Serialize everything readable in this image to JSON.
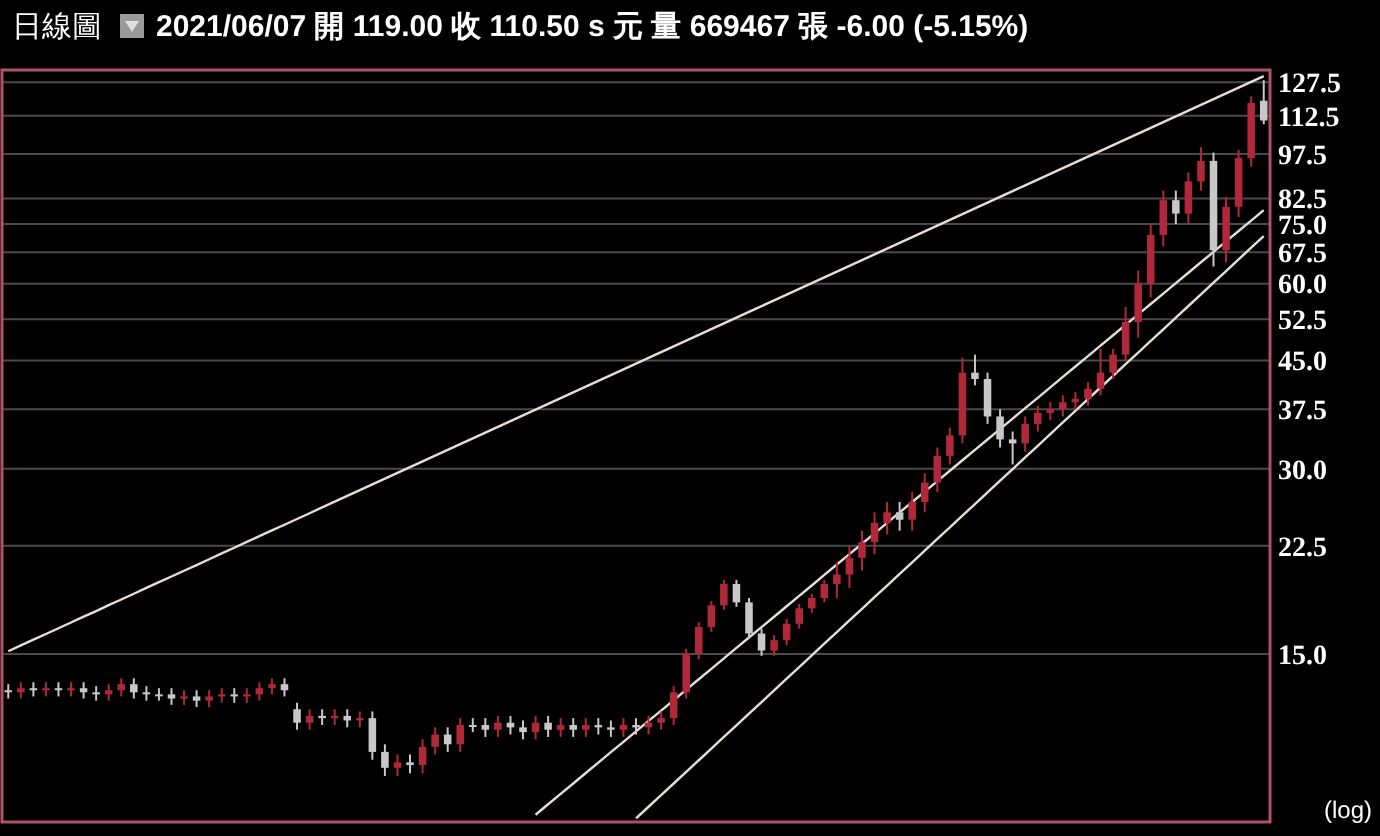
{
  "chart_data": {
    "type": "candlestick",
    "title": "日線圖",
    "subtitle": "2021/06/07 開 119.00 收 110.50 s 元 量 669467 張 -6.00 (-5.15%)",
    "annotations": [
      "(log)"
    ],
    "categories": [
      null,
      null,
      null,
      null,
      null,
      null,
      null,
      null,
      null,
      null,
      null,
      null,
      null,
      null,
      null,
      null,
      null,
      null,
      null,
      null,
      null,
      null,
      null,
      null,
      null,
      null,
      null,
      null,
      null,
      null,
      null,
      null,
      null,
      null,
      null,
      null,
      null,
      null,
      null,
      null,
      null,
      null,
      null,
      null,
      null,
      null,
      null,
      null,
      null,
      null,
      null,
      null,
      null,
      null,
      null,
      null,
      null,
      null,
      null,
      null,
      null,
      null,
      null,
      null,
      null,
      null,
      null,
      null,
      null,
      null,
      null,
      null,
      null,
      null,
      null,
      null,
      null,
      null,
      null,
      null,
      null,
      null,
      null,
      null,
      null,
      null,
      null,
      null,
      null,
      null,
      null,
      null,
      null,
      null,
      null,
      null,
      null,
      null,
      null,
      null,
      null
    ],
    "ohlc": [
      [
        13.1,
        13.4,
        12.7,
        13.0
      ],
      [
        13.0,
        13.5,
        12.7,
        13.2
      ],
      [
        13.2,
        13.5,
        12.8,
        13.1
      ],
      [
        13.1,
        13.5,
        12.8,
        13.2
      ],
      [
        13.2,
        13.5,
        12.8,
        13.1
      ],
      [
        13.1,
        13.5,
        12.8,
        13.2
      ],
      [
        13.2,
        13.5,
        12.7,
        13.0
      ],
      [
        13.0,
        13.3,
        12.6,
        12.9
      ],
      [
        12.9,
        13.4,
        12.6,
        13.1
      ],
      [
        13.1,
        13.7,
        12.8,
        13.4
      ],
      [
        13.4,
        13.7,
        12.7,
        13.0
      ],
      [
        13.0,
        13.3,
        12.6,
        12.9
      ],
      [
        12.9,
        13.2,
        12.6,
        12.9
      ],
      [
        12.9,
        13.2,
        12.4,
        12.7
      ],
      [
        12.7,
        13.1,
        12.4,
        12.8
      ],
      [
        12.8,
        13.1,
        12.3,
        12.6
      ],
      [
        12.6,
        13.1,
        12.3,
        12.8
      ],
      [
        12.8,
        13.2,
        12.5,
        12.9
      ],
      [
        12.9,
        13.2,
        12.5,
        12.8
      ],
      [
        12.8,
        13.2,
        12.5,
        12.9
      ],
      [
        12.9,
        13.5,
        12.6,
        13.2
      ],
      [
        13.2,
        13.7,
        12.9,
        13.4
      ],
      [
        13.4,
        13.7,
        12.8,
        13.1
      ],
      [
        12.2,
        12.5,
        11.3,
        11.6
      ],
      [
        11.6,
        12.2,
        11.3,
        11.9
      ],
      [
        11.9,
        12.2,
        11.5,
        11.8
      ],
      [
        11.8,
        12.2,
        11.5,
        11.9
      ],
      [
        11.9,
        12.2,
        11.4,
        11.7
      ],
      [
        11.7,
        12.1,
        11.4,
        11.8
      ],
      [
        11.8,
        12.1,
        10.1,
        10.4
      ],
      [
        10.4,
        10.7,
        9.5,
        9.8
      ],
      [
        9.8,
        10.3,
        9.5,
        10.0
      ],
      [
        10.0,
        10.3,
        9.6,
        9.9
      ],
      [
        9.9,
        10.9,
        9.6,
        10.6
      ],
      [
        10.6,
        11.4,
        10.3,
        11.1
      ],
      [
        11.1,
        11.4,
        10.4,
        10.7
      ],
      [
        10.7,
        11.8,
        10.4,
        11.5
      ],
      [
        11.5,
        11.8,
        11.2,
        11.5
      ],
      [
        11.5,
        11.8,
        11.0,
        11.3
      ],
      [
        11.3,
        11.9,
        11.0,
        11.6
      ],
      [
        11.6,
        11.9,
        11.1,
        11.4
      ],
      [
        11.4,
        11.7,
        10.9,
        11.2
      ],
      [
        11.2,
        11.9,
        10.9,
        11.6
      ],
      [
        11.6,
        11.9,
        11.0,
        11.3
      ],
      [
        11.3,
        11.8,
        11.0,
        11.5
      ],
      [
        11.5,
        11.8,
        11.0,
        11.3
      ],
      [
        11.3,
        11.8,
        11.0,
        11.5
      ],
      [
        11.5,
        11.8,
        11.1,
        11.4
      ],
      [
        11.4,
        11.7,
        11.0,
        11.3
      ],
      [
        11.3,
        11.8,
        11.0,
        11.5
      ],
      [
        11.5,
        11.8,
        11.1,
        11.4
      ],
      [
        11.4,
        11.9,
        11.1,
        11.6
      ],
      [
        11.6,
        12.1,
        11.3,
        11.8
      ],
      [
        11.8,
        13.3,
        11.5,
        13.0
      ],
      [
        13.0,
        15.3,
        12.7,
        15.0
      ],
      [
        15.0,
        16.9,
        14.7,
        16.6
      ],
      [
        16.6,
        18.3,
        16.3,
        18.0
      ],
      [
        18.0,
        19.8,
        17.7,
        19.5
      ],
      [
        19.5,
        19.8,
        17.9,
        18.2
      ],
      [
        18.2,
        18.5,
        15.9,
        16.2
      ],
      [
        16.2,
        16.5,
        14.9,
        15.2
      ],
      [
        15.2,
        16.1,
        14.9,
        15.8
      ],
      [
        15.8,
        17.1,
        15.5,
        16.8
      ],
      [
        16.8,
        18.1,
        16.5,
        17.8
      ],
      [
        17.8,
        18.8,
        17.5,
        18.5
      ],
      [
        18.5,
        19.8,
        18.2,
        19.5
      ],
      [
        19.5,
        21.2,
        18.5,
        20.2
      ],
      [
        20.2,
        22.5,
        19.2,
        21.5
      ],
      [
        21.5,
        23.8,
        20.5,
        22.8
      ],
      [
        22.8,
        25.5,
        21.8,
        24.5
      ],
      [
        24.5,
        26.5,
        23.5,
        25.5
      ],
      [
        25.5,
        26.5,
        23.8,
        24.8
      ],
      [
        24.8,
        27.5,
        23.8,
        26.5
      ],
      [
        26.5,
        29.5,
        25.5,
        28.5
      ],
      [
        28.5,
        32.5,
        27.5,
        31.5
      ],
      [
        31.5,
        35.0,
        30.5,
        34.0
      ],
      [
        34.0,
        45.5,
        33.0,
        43.0
      ],
      [
        43.0,
        46.0,
        41.0,
        42.0
      ],
      [
        42.0,
        43.0,
        35.5,
        36.5
      ],
      [
        36.5,
        37.5,
        32.5,
        33.5
      ],
      [
        33.5,
        34.5,
        30.5,
        33.0
      ],
      [
        33.0,
        36.5,
        32.0,
        35.5
      ],
      [
        35.5,
        38.0,
        34.5,
        37.0
      ],
      [
        37.0,
        38.5,
        36.0,
        37.5
      ],
      [
        37.5,
        39.5,
        36.5,
        38.5
      ],
      [
        38.5,
        40.0,
        37.5,
        39.0
      ],
      [
        39.0,
        41.5,
        38.0,
        40.5
      ],
      [
        40.5,
        47.0,
        39.5,
        43.0
      ],
      [
        43.0,
        47.0,
        42.0,
        46.0
      ],
      [
        46.0,
        55.0,
        45.0,
        52.0
      ],
      [
        52.0,
        63.0,
        49.0,
        60.0
      ],
      [
        60.0,
        75.0,
        57.0,
        72.0
      ],
      [
        72.0,
        85.0,
        69.0,
        82.0
      ],
      [
        82.0,
        85.0,
        75.0,
        78.0
      ],
      [
        78.0,
        91.0,
        75.0,
        88.0
      ],
      [
        88.0,
        100.0,
        85.0,
        95.0
      ],
      [
        95.0,
        98.0,
        64.0,
        68.0
      ],
      [
        68.0,
        83.0,
        65.0,
        80.0
      ],
      [
        80.0,
        99.0,
        77.0,
        96.0
      ],
      [
        96.0,
        121.0,
        93.0,
        118.0
      ],
      [
        119.0,
        128.5,
        109.0,
        110.5
      ]
    ],
    "colors": [
      "#c8c8c8",
      "#b0283a",
      "#c8c8c8",
      "#b0283a",
      "#c8c8c8",
      "#b0283a",
      "#c8c8c8",
      "#c8c8c8",
      "#b0283a",
      "#b0283a",
      "#c8c8c8",
      "#c8c8c8",
      "#c8c8c8",
      "#c8c8c8",
      "#b0283a",
      "#c8c8c8",
      "#b0283a",
      "#b0283a",
      "#c8c8c8",
      "#b0283a",
      "#b0283a",
      "#b0283a",
      "#c8c8c8",
      "#c8c8c8",
      "#b0283a",
      "#c8c8c8",
      "#b0283a",
      "#c8c8c8",
      "#b0283a",
      "#c8c8c8",
      "#c8c8c8",
      "#b0283a",
      "#c8c8c8",
      "#b0283a",
      "#b0283a",
      "#c8c8c8",
      "#b0283a",
      "#c8c8c8",
      "#c8c8c8",
      "#b0283a",
      "#c8c8c8",
      "#c8c8c8",
      "#b0283a",
      "#c8c8c8",
      "#b0283a",
      "#c8c8c8",
      "#b0283a",
      "#c8c8c8",
      "#c8c8c8",
      "#b0283a",
      "#c8c8c8",
      "#b0283a",
      "#b0283a",
      "#b0283a",
      "#b0283a",
      "#b0283a",
      "#b0283a",
      "#b0283a",
      "#c8c8c8",
      "#c8c8c8",
      "#c8c8c8",
      "#b0283a",
      "#b0283a",
      "#b0283a",
      "#b0283a",
      "#b0283a",
      "#b0283a",
      "#b0283a",
      "#b0283a",
      "#b0283a",
      "#b0283a",
      "#c8c8c8",
      "#b0283a",
      "#b0283a",
      "#b0283a",
      "#b0283a",
      "#b0283a",
      "#c8c8c8",
      "#c8c8c8",
      "#c8c8c8",
      "#c8c8c8",
      "#b0283a",
      "#b0283a",
      "#b0283a",
      "#b0283a",
      "#b0283a",
      "#b0283a",
      "#b0283a",
      "#b0283a",
      "#b0283a",
      "#b0283a",
      "#b0283a",
      "#b0283a",
      "#c8c8c8",
      "#b0283a",
      "#b0283a",
      "#c8c8c8",
      "#b0283a",
      "#b0283a",
      "#b0283a",
      "#c8c8c8"
    ],
    "series": [
      {
        "type": "line",
        "color": "#e6ded2",
        "values": [
          15.16,
          15.49,
          15.83,
          16.17,
          16.52,
          16.88,
          17.25,
          17.62,
          18.01,
          18.4,
          18.8,
          19.21,
          19.63,
          20.05,
          20.49,
          20.93,
          21.39,
          21.86,
          22.33,
          22.82,
          23.32,
          23.83,
          24.34,
          24.87,
          25.41,
          25.97,
          26.53,
          27.11,
          27.7,
          28.3,
          28.92,
          29.55,
          30.19,
          30.85,
          31.52,
          32.2,
          32.9,
          33.62,
          34.35,
          35.1,
          35.87,
          36.65,
          37.44,
          38.26,
          39.09,
          39.94,
          40.81,
          41.7,
          42.61,
          43.53,
          44.48,
          45.45,
          46.44,
          47.45,
          48.48,
          49.54,
          50.61,
          51.71,
          52.84,
          53.99,
          55.17,
          56.37,
          57.59,
          58.85,
          60.13,
          61.44,
          62.77,
          64.14,
          65.53,
          66.96,
          68.42,
          69.91,
          71.43,
          72.98,
          74.57,
          76.19,
          77.85,
          79.54,
          81.27,
          83.04,
          84.85,
          86.7,
          88.58,
          90.51,
          92.48,
          94.49,
          96.55,
          98.65,
          100.8,
          103.0,
          105.2,
          107.5,
          109.8,
          112.2,
          114.7,
          117.2,
          119.7,
          122.3,
          125.0,
          127.7,
          130.5
        ]
      },
      {
        "type": "line",
        "color": "#e6ded2",
        "values": [
          null,
          null,
          null,
          null,
          null,
          null,
          null,
          null,
          null,
          null,
          null,
          null,
          null,
          null,
          null,
          null,
          null,
          null,
          null,
          null,
          null,
          null,
          null,
          null,
          null,
          null,
          null,
          null,
          null,
          null,
          null,
          null,
          null,
          null,
          null,
          null,
          null,
          null,
          null,
          null,
          null,
          null,
          8.22,
          8.55,
          8.89,
          9.24,
          9.61,
          9.99,
          10.39,
          10.8,
          11.23,
          11.68,
          12.14,
          12.62,
          13.13,
          13.65,
          14.19,
          14.76,
          15.35,
          15.96,
          16.59,
          17.25,
          17.94,
          18.65,
          19.39,
          20.17,
          20.97,
          21.8,
          22.67,
          23.57,
          24.51,
          25.49,
          26.5,
          27.55,
          28.65,
          29.79,
          30.98,
          32.21,
          33.49,
          34.82,
          36.21,
          37.65,
          39.14,
          40.7,
          42.32,
          44.0,
          45.75,
          47.57,
          49.47,
          51.43,
          53.48,
          55.61,
          57.82,
          60.12,
          62.51,
          65.0,
          67.59,
          70.28,
          73.07,
          75.98,
          79.0
        ]
      },
      {
        "type": "line",
        "color": "#e6ded2",
        "values": [
          null,
          null,
          null,
          null,
          null,
          null,
          null,
          null,
          null,
          null,
          null,
          null,
          null,
          null,
          null,
          null,
          null,
          null,
          null,
          null,
          null,
          null,
          null,
          null,
          null,
          null,
          null,
          null,
          null,
          null,
          null,
          null,
          null,
          null,
          null,
          null,
          null,
          null,
          null,
          null,
          null,
          null,
          null,
          null,
          null,
          null,
          null,
          null,
          null,
          null,
          8.11,
          8.47,
          8.85,
          9.24,
          9.65,
          10.08,
          10.53,
          11.0,
          11.49,
          12.0,
          12.53,
          13.09,
          13.68,
          14.29,
          14.92,
          15.59,
          16.28,
          17.01,
          17.77,
          18.56,
          19.38,
          20.25,
          21.15,
          22.09,
          23.08,
          24.1,
          25.18,
          26.3,
          27.47,
          28.7,
          29.98,
          31.31,
          32.71,
          34.17,
          35.69,
          37.28,
          38.94,
          40.68,
          42.49,
          44.38,
          46.36,
          48.43,
          50.58,
          52.84,
          55.19,
          57.65,
          60.22,
          62.9,
          65.71,
          68.64,
          71.7
        ]
      }
    ],
    "log": true,
    "grid": "y",
    "ylim": [
      8.0,
      133.5
    ],
    "yticks": [
      {
        "value": 15,
        "label": "15.0"
      },
      {
        "value": 22.5,
        "label": "22.5"
      },
      {
        "value": 30,
        "label": "30.0"
      },
      {
        "value": 37.5,
        "label": "37.5"
      },
      {
        "value": 45,
        "label": "45.0"
      },
      {
        "value": 52.5,
        "label": "52.5"
      },
      {
        "value": 60,
        "label": "60.0"
      },
      {
        "value": 67.5,
        "label": "67.5"
      },
      {
        "value": 75,
        "label": "75.0"
      },
      {
        "value": 82.5,
        "label": "82.5"
      },
      {
        "value": 97.5,
        "label": "97.5"
      },
      {
        "value": 112.5,
        "label": "112.5"
      },
      {
        "value": 127.5,
        "label": "127.5"
      }
    ]
  }
}
